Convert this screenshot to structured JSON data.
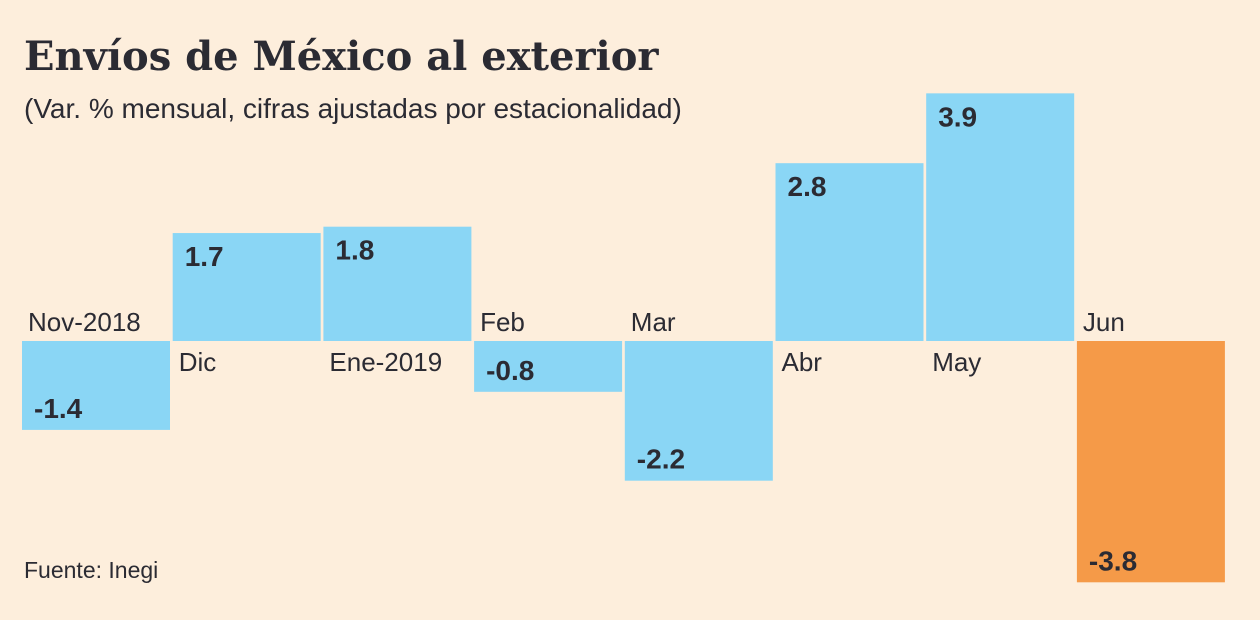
{
  "chart_data": {
    "type": "bar",
    "title": "Envíos de México al exterior",
    "subtitle": "(Var. % mensual, cifras ajustadas por estacionalidad)",
    "categories": [
      "Nov-2018",
      "Dic",
      "Ene-2019",
      "Feb",
      "Mar",
      "Abr",
      "May",
      "Jun"
    ],
    "values": [
      -1.4,
      1.7,
      1.8,
      -0.8,
      -2.2,
      2.8,
      3.9,
      -3.8
    ],
    "value_labels": [
      "-1.4",
      "1.7",
      "1.8",
      "-0.8",
      "-2.2",
      "2.8",
      "3.9",
      "-3.8"
    ],
    "colors": [
      "#8ad6f5",
      "#8ad6f5",
      "#8ad6f5",
      "#8ad6f5",
      "#8ad6f5",
      "#8ad6f5",
      "#8ad6f5",
      "#f59a48"
    ],
    "source": "Fuente: Inegi",
    "xlabel": "",
    "ylabel": "",
    "ylim": [
      -3.8,
      3.9
    ],
    "grid": false
  }
}
